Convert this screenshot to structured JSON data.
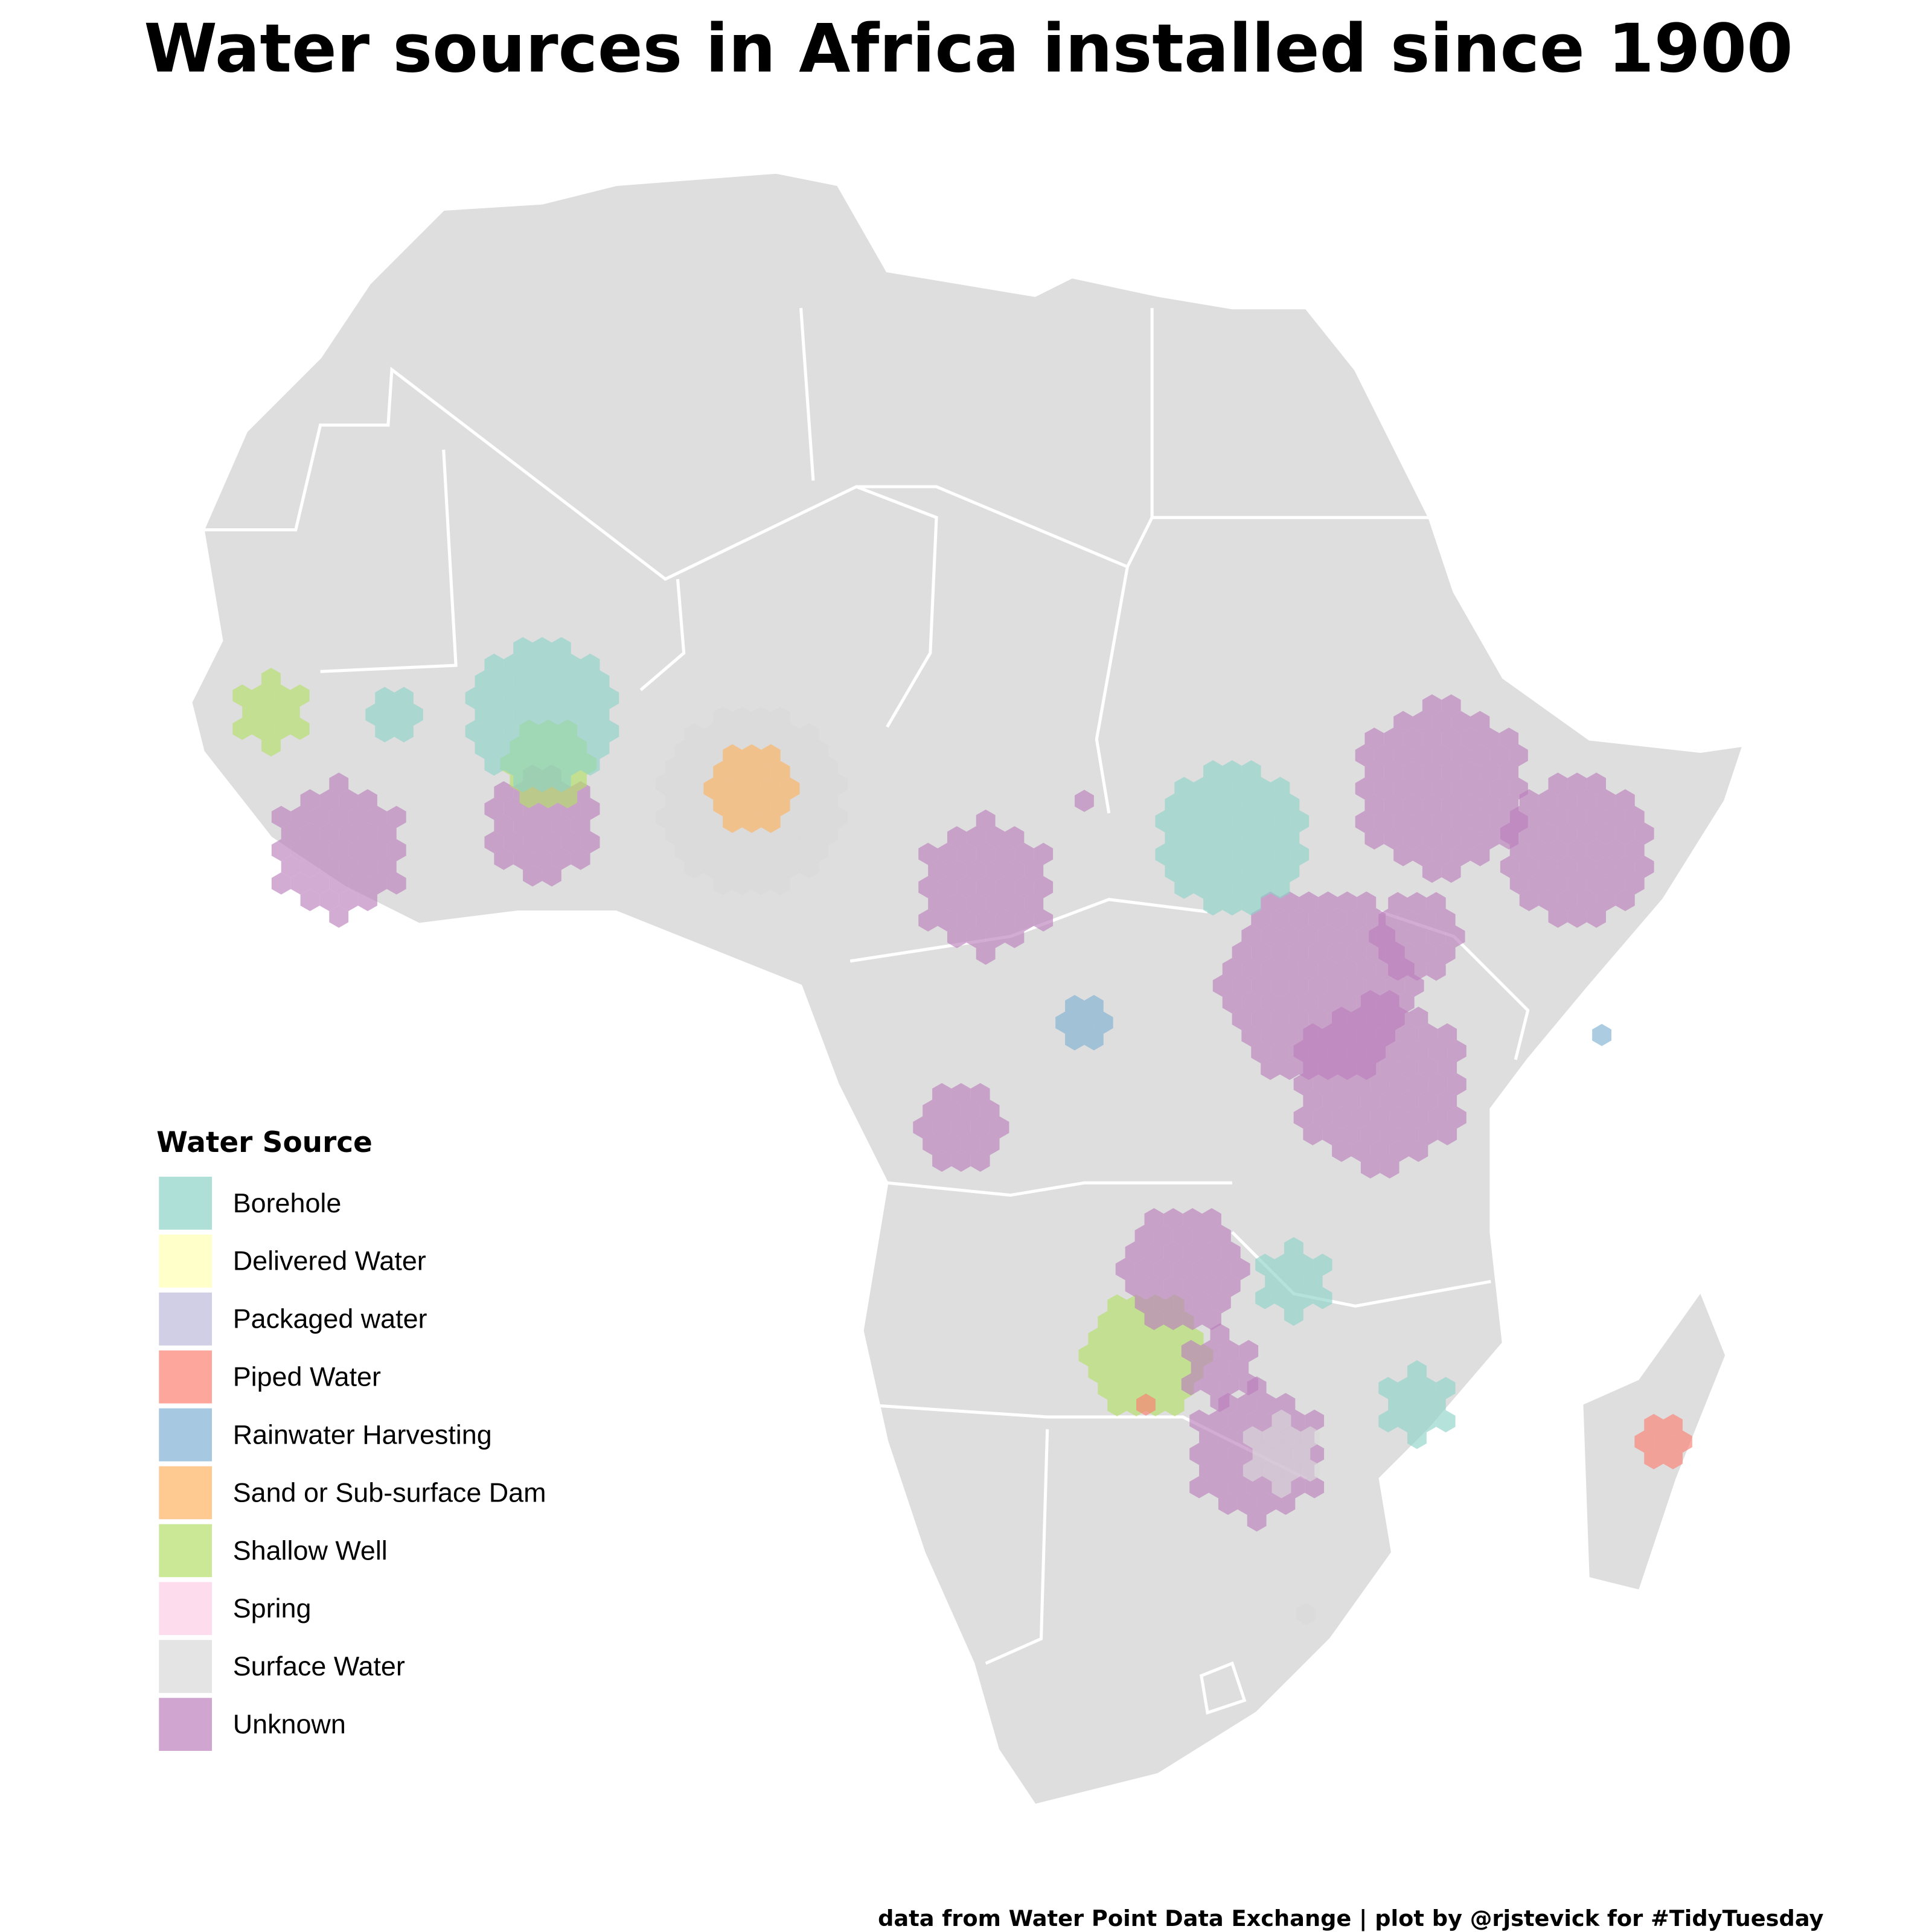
{
  "title": "Water sources in Africa installed since 1900",
  "legend": {
    "title": "Water Source",
    "items": [
      {
        "label": "Borehole",
        "color": "#8dd3c7"
      },
      {
        "label": "Delivered Water",
        "color": "#ffffb3"
      },
      {
        "label": "Packaged water",
        "color": "#bebada"
      },
      {
        "label": "Piped Water",
        "color": "#fb8072"
      },
      {
        "label": "Rainwater Harvesting",
        "color": "#80b1d3"
      },
      {
        "label": "Sand or Sub-surface Dam",
        "color": "#fdb462"
      },
      {
        "label": "Shallow Well",
        "color": "#b3de69"
      },
      {
        "label": "Spring",
        "color": "#fccde5"
      },
      {
        "label": "Surface Water",
        "color": "#d9d9d9"
      },
      {
        "label": "Unknown",
        "color": "#bc80bd"
      }
    ]
  },
  "caption": "data from Water Point Data Exchange | plot by @rjstevick for #TidyTuesday"
}
